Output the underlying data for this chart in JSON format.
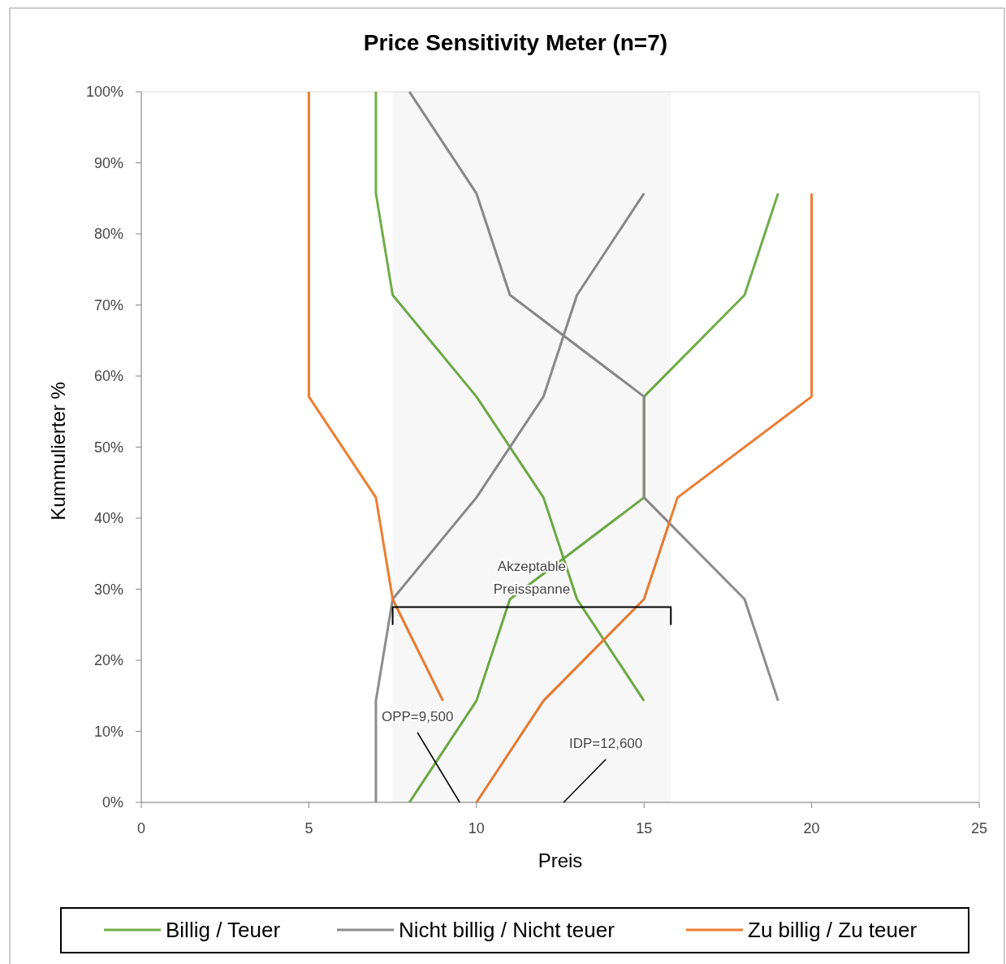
{
  "chart_data": {
    "type": "line",
    "title": "Price Sensitivity Meter (n=7)",
    "xlabel": "Preis",
    "ylabel": "Kummulierter %",
    "series": [
      {
        "name": "Billig / Teuer",
        "color": "#70ad47",
        "x": [
          7,
          7,
          7.5,
          10,
          12,
          13,
          15
        ],
        "values": [
          100,
          85.7,
          71.4,
          57.1,
          42.9,
          28.6,
          14.3
        ]
      },
      {
        "color": "#70ad47",
        "x": [
          8,
          10,
          11,
          15,
          15,
          18,
          19
        ],
        "values": [
          0,
          14.3,
          28.6,
          42.9,
          57.1,
          71.4,
          85.7
        ]
      },
      {
        "name": "Nicht billig / Nicht teuer",
        "color": "#8c8c8c",
        "x": [
          8,
          10,
          11,
          15,
          15,
          18,
          19
        ],
        "values": [
          100,
          85.7,
          71.4,
          57.1,
          42.9,
          28.6,
          14.3
        ]
      },
      {
        "color": "#8c8c8c",
        "x": [
          7,
          7,
          7.5,
          10,
          12,
          13,
          15
        ],
        "values": [
          0,
          14.3,
          28.6,
          42.9,
          57.1,
          71.4,
          85.7
        ]
      },
      {
        "name": "Zu billig / Zu teuer",
        "color": "#ed7d31",
        "x": [
          5,
          5,
          7,
          7.5,
          9
        ],
        "values": [
          100,
          57.1,
          42.9,
          28.6,
          14.3
        ]
      },
      {
        "color": "#ed7d31",
        "x": [
          10,
          12,
          15,
          16,
          20,
          20
        ],
        "values": [
          0,
          14.3,
          28.6,
          42.9,
          57.1,
          85.7
        ]
      }
    ],
    "xlim": [
      0,
      25
    ],
    "xticks": [
      0,
      5,
      10,
      15,
      20,
      25
    ],
    "ylim": [
      0,
      100
    ],
    "yticks": [
      {
        "value": 0,
        "label": "0%"
      },
      {
        "value": 10,
        "label": "10%"
      },
      {
        "value": 20,
        "label": "20%"
      },
      {
        "value": 30,
        "label": "30%"
      },
      {
        "value": 40,
        "label": "40%"
      },
      {
        "value": 50,
        "label": "50%"
      },
      {
        "value": 60,
        "label": "60%"
      },
      {
        "value": 70,
        "label": "70%"
      },
      {
        "value": 80,
        "label": "80%"
      },
      {
        "value": 90,
        "label": "90%"
      },
      {
        "value": 100,
        "label": "100%"
      }
    ],
    "annotations": [
      {
        "text": "OPP=9,500",
        "x": 9.5,
        "y": 0
      },
      {
        "text": "IDP=12,600",
        "x": 12.6,
        "y": 0
      }
    ],
    "bands": [
      {
        "axis": "x",
        "from": 7.5,
        "to": 15.8,
        "label": "Akzeptable Preisspanne"
      }
    ],
    "grid": false,
    "legend": "bottom",
    "marker": "none",
    "line_style": "solid"
  }
}
